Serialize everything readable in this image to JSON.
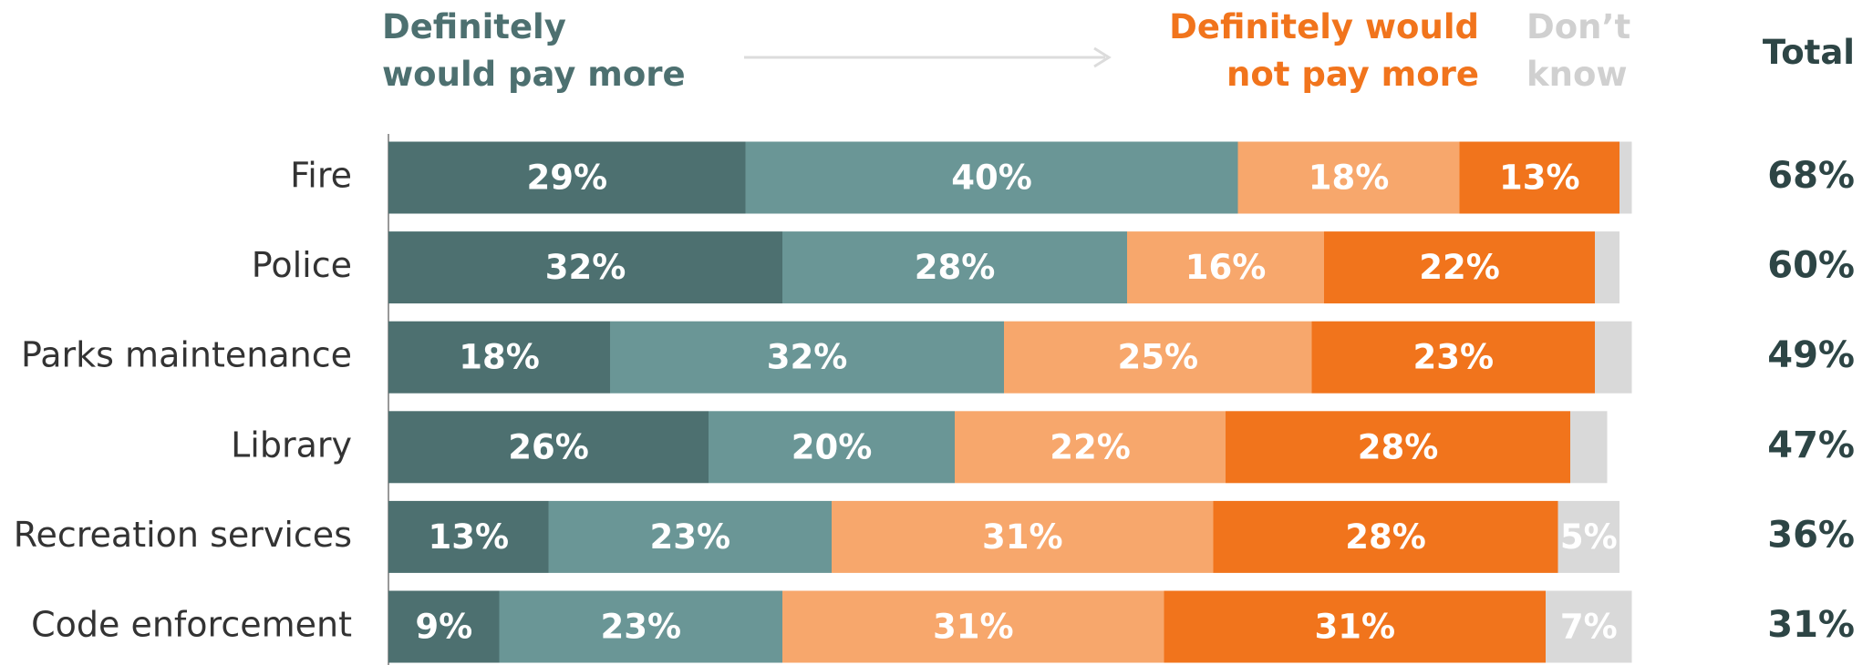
{
  "chart_data": {
    "type": "stacked-bar",
    "orientation": "horizontal",
    "categories": [
      "Fire",
      "Police",
      "Parks maintenance",
      "Library",
      "Recreation services",
      "Code enforcement"
    ],
    "series": [
      {
        "name": "Definitely\nwould pay more",
        "color": "#4d7070",
        "values": [
          29,
          32,
          18,
          26,
          13,
          9
        ],
        "value_labels": [
          "29%",
          "32%",
          "18%",
          "26%",
          "13%",
          "9%"
        ]
      },
      {
        "color": "#6a9696",
        "values": [
          40,
          28,
          32,
          20,
          23,
          23
        ],
        "value_labels": [
          "40%",
          "28%",
          "32%",
          "20%",
          "23%",
          "23%"
        ]
      },
      {
        "color": "#f7a76c",
        "values": [
          18,
          16,
          25,
          22,
          31,
          31
        ],
        "value_labels": [
          "18%",
          "16%",
          "25%",
          "22%",
          "31%",
          "31%"
        ]
      },
      {
        "name": "Definitely would\nnot pay more",
        "color": "#f1741c",
        "values": [
          13,
          22,
          23,
          28,
          28,
          31
        ],
        "value_labels": [
          "13%",
          "22%",
          "23%",
          "28%",
          "28%",
          "31%"
        ]
      },
      {
        "name": "Don’t\nknow",
        "color": "#d9d9d9",
        "values": [
          1,
          2,
          3,
          3,
          5,
          7
        ],
        "value_labels": [
          null,
          null,
          null,
          null,
          "5%",
          "7%"
        ]
      }
    ],
    "totals": {
      "label": "Total",
      "values": [
        68,
        60,
        49,
        47,
        36,
        31
      ],
      "value_labels": [
        "68%",
        "60%",
        "49%",
        "47%",
        "36%",
        "31%"
      ]
    }
  }
}
